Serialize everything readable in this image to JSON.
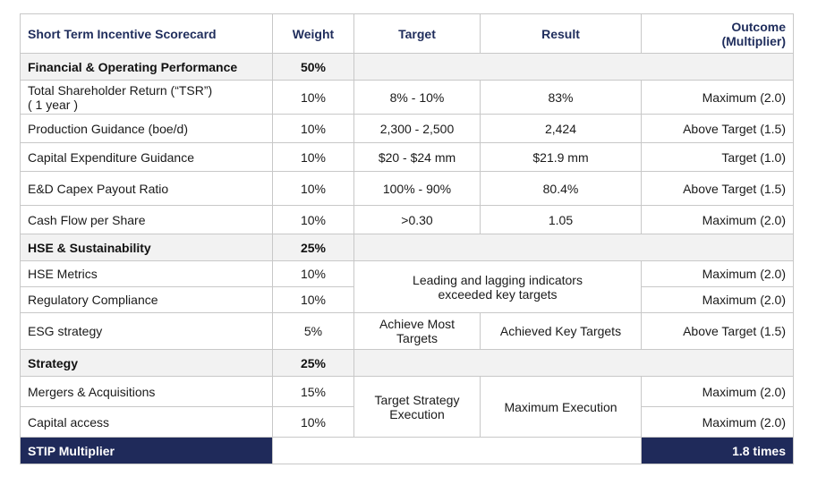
{
  "headers": {
    "scorecard": "Short Term Incentive Scorecard",
    "weight": "Weight",
    "target": "Target",
    "result": "Result",
    "outcome_line1": "Outcome",
    "outcome_line2": "(Multiplier)"
  },
  "sections": {
    "financial": {
      "label": "Financial & Operating Performance",
      "weight": "50%"
    },
    "hse": {
      "label": "HSE & Sustainability",
      "weight": "25%"
    },
    "strategy": {
      "label": "Strategy",
      "weight": "25%"
    }
  },
  "rows": {
    "tsr": {
      "line1": "Total Shareholder Return (“TSR”)",
      "line2": "( 1 year )",
      "weight": "10%",
      "target": "8% - 10%",
      "result": "83%",
      "outcome": "Maximum (2.0)"
    },
    "production": {
      "label": "Production Guidance (boe/d)",
      "weight": "10%",
      "target": "2,300 - 2,500",
      "result": "2,424",
      "outcome": "Above Target (1.5)"
    },
    "capex": {
      "label": "Capital Expenditure Guidance",
      "weight": "10%",
      "target": "$20 - $24 mm",
      "result": "$21.9 mm",
      "outcome": "Target (1.0)"
    },
    "payout": {
      "label": "E&D Capex Payout Ratio",
      "weight": "10%",
      "target": "100% - 90%",
      "result": "80.4%",
      "outcome": "Above Target (1.5)"
    },
    "cashflow": {
      "label": "Cash Flow per Share",
      "weight": "10%",
      "target": ">0.30",
      "result": "1.05",
      "outcome": "Maximum (2.0)"
    },
    "hse_metrics": {
      "label": "HSE Metrics",
      "weight": "10%",
      "outcome": "Maximum (2.0)"
    },
    "regulatory": {
      "label": "Regulatory Compliance",
      "weight": "10%",
      "outcome": "Maximum (2.0)"
    },
    "hse_merged": {
      "line1": "Leading and lagging indicators",
      "line2": "exceeded key targets"
    },
    "esg": {
      "label": "ESG strategy",
      "weight": "5%",
      "target_line1": "Achieve Most",
      "target_line2": "Targets",
      "result": "Achieved Key Targets",
      "outcome": "Above Target (1.5)"
    },
    "mergers": {
      "label": "Mergers & Acquisitions",
      "weight": "15%",
      "outcome": "Maximum (2.0)"
    },
    "capital_access": {
      "label": "Capital access",
      "weight": "10%",
      "outcome": "Maximum (2.0)"
    },
    "strategy_merged": {
      "target_line1": "Target Strategy",
      "target_line2": "Execution",
      "result": "Maximum Execution"
    }
  },
  "footer": {
    "label": "STIP Multiplier",
    "value": "1.8 times"
  }
}
